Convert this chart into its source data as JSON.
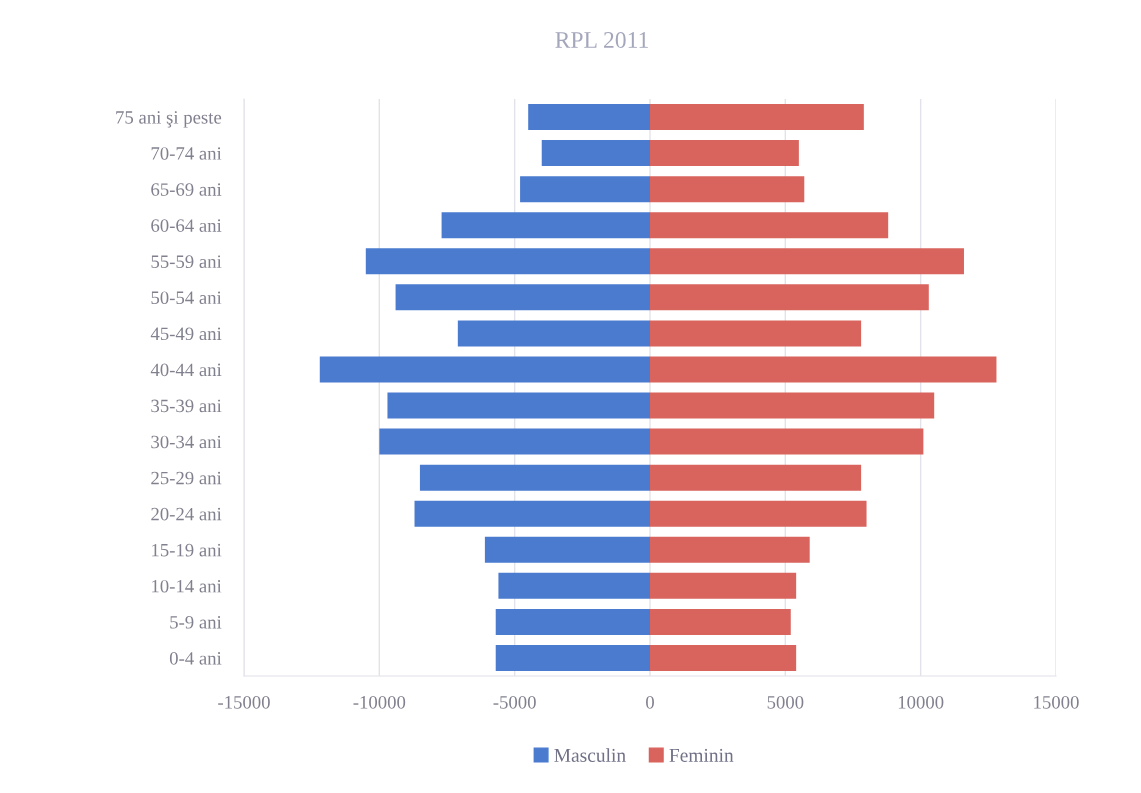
{
  "chart_data": {
    "type": "bar",
    "title": "RPL 2011",
    "orientation": "horizontal",
    "stacked": true,
    "categories": [
      "75 ani şi peste",
      "70-74 ani",
      "65-69 ani",
      "60-64 ani",
      "55-59 ani",
      "50-54 ani",
      "45-49 ani",
      "40-44 ani",
      "35-39 ani",
      "30-34 ani",
      "25-29 ani",
      "20-24 ani",
      "15-19 ani",
      "10-14 ani",
      "5-9 ani",
      "0-4 ani"
    ],
    "series": [
      {
        "name": "Masculin",
        "color": "#4a7bcf",
        "values": [
          -4500,
          -4000,
          -4800,
          -7700,
          -10500,
          -9400,
          -7100,
          -12200,
          -9700,
          -10000,
          -8500,
          -8700,
          -6100,
          -5600,
          -5700,
          -5700
        ]
      },
      {
        "name": "Feminin",
        "color": "#d9635d",
        "values": [
          7900,
          5500,
          5700,
          8800,
          11600,
          10300,
          7800,
          12800,
          10500,
          10100,
          7800,
          8000,
          5900,
          5400,
          5200,
          5400
        ]
      }
    ],
    "xlim": [
      -15000,
      15000
    ],
    "xticks": [
      -15000,
      -10000,
      -5000,
      0,
      5000,
      10000,
      15000
    ],
    "grid": "x",
    "legend": "bottom"
  }
}
